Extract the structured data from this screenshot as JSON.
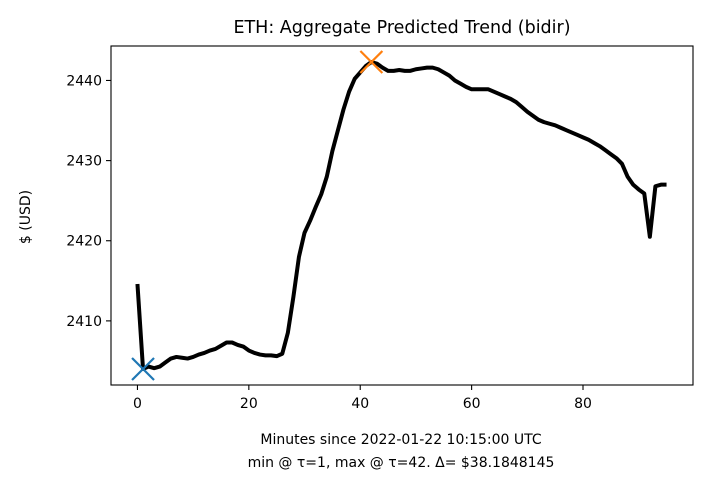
{
  "chart_data": {
    "type": "line",
    "title": "ETH: Aggregate Predicted Trend (bidir)",
    "xlabel": "Minutes since 2022-01-22 10:15:00 UTC",
    "xlabel2": "min @ τ=1, max @ τ=42. Δ= $38.1848145",
    "ylabel": "$ (USD)",
    "xlim": [
      -4.75,
      99.75
    ],
    "ylim": [
      2402.0,
      2444.3
    ],
    "xticks": [
      0,
      20,
      40,
      60,
      80
    ],
    "yticks": [
      2410,
      2420,
      2430,
      2440
    ],
    "grid": false,
    "series": [
      {
        "color": "#000000",
        "x": [
          0,
          1,
          2,
          3,
          4,
          5,
          6,
          7,
          8,
          9,
          10,
          11,
          12,
          13,
          14,
          15,
          16,
          17,
          18,
          19,
          20,
          21,
          22,
          23,
          24,
          25,
          26,
          27,
          28,
          29,
          30,
          31,
          32,
          33,
          34,
          35,
          36,
          37,
          38,
          39,
          40,
          41,
          42,
          43,
          44,
          45,
          46,
          47,
          48,
          49,
          50,
          51,
          52,
          53,
          54,
          55,
          56,
          57,
          58,
          59,
          60,
          61,
          62,
          63,
          64,
          65,
          66,
          67,
          68,
          69,
          70,
          71,
          72,
          73,
          74,
          75,
          76,
          77,
          78,
          79,
          80,
          81,
          82,
          83,
          84,
          85,
          86,
          87,
          88,
          89,
          90,
          91,
          92,
          93,
          94,
          95
        ],
        "y": [
          2414.6,
          2404.0,
          2404.3,
          2404.1,
          2404.3,
          2404.8,
          2405.3,
          2405.5,
          2405.4,
          2405.3,
          2405.5,
          2405.8,
          2406.0,
          2406.3,
          2406.5,
          2406.9,
          2407.3,
          2407.3,
          2407.0,
          2406.8,
          2406.3,
          2406.0,
          2405.8,
          2405.7,
          2405.7,
          2405.6,
          2405.9,
          2408.5,
          2413.0,
          2418.0,
          2421.0,
          2422.5,
          2424.2,
          2425.8,
          2428.0,
          2431.2,
          2433.8,
          2436.4,
          2438.6,
          2440.2,
          2441.0,
          2441.8,
          2442.3,
          2442.1,
          2441.6,
          2441.2,
          2441.2,
          2441.3,
          2441.2,
          2441.2,
          2441.4,
          2441.5,
          2441.6,
          2441.6,
          2441.4,
          2441.0,
          2440.6,
          2440.0,
          2439.6,
          2439.2,
          2438.9,
          2438.9,
          2438.9,
          2438.9,
          2438.6,
          2438.3,
          2438.0,
          2437.7,
          2437.3,
          2436.7,
          2436.1,
          2435.6,
          2435.1,
          2434.8,
          2434.6,
          2434.4,
          2434.1,
          2433.8,
          2433.5,
          2433.2,
          2432.9,
          2432.6,
          2432.2,
          2431.8,
          2431.3,
          2430.8,
          2430.3,
          2429.6,
          2428.0,
          2427.0,
          2426.4,
          2425.9,
          2420.5,
          2426.8,
          2427.0,
          2427.0
        ]
      }
    ],
    "markers": [
      {
        "x": 1,
        "y": 2404.0,
        "color": "#1f77b4",
        "shape": "x"
      },
      {
        "x": 42,
        "y": 2442.3,
        "color": "#ff7f0e",
        "shape": "x"
      }
    ]
  }
}
